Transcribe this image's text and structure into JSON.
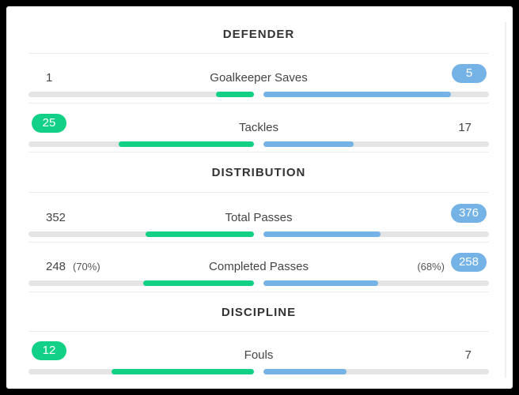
{
  "sections": [
    {
      "title": "DEFENDER"
    },
    {
      "title": "DISTRIBUTION"
    },
    {
      "title": "DISCIPLINE"
    }
  ],
  "stats": [
    {
      "label": "Goalkeeper Saves",
      "home": "1",
      "away": "5",
      "home_pct": "",
      "away_pct": "",
      "home_fill": 0.17,
      "away_fill": 0.83,
      "highlight": "away"
    },
    {
      "label": "Tackles",
      "home": "25",
      "away": "17",
      "home_pct": "",
      "away_pct": "",
      "home_fill": 0.6,
      "away_fill": 0.4,
      "highlight": "home"
    },
    {
      "label": "Total Passes",
      "home": "352",
      "away": "376",
      "home_pct": "",
      "away_pct": "",
      "home_fill": 0.48,
      "away_fill": 0.52,
      "highlight": "away"
    },
    {
      "label": "Completed Passes",
      "home": "248",
      "away": "258",
      "home_pct": "(70%)",
      "away_pct": "(68%)",
      "home_fill": 0.49,
      "away_fill": 0.51,
      "highlight": "away"
    },
    {
      "label": "Fouls",
      "home": "12",
      "away": "7",
      "home_pct": "",
      "away_pct": "",
      "home_fill": 0.63,
      "away_fill": 0.37,
      "highlight": "home"
    }
  ],
  "colors": {
    "home": "#12d186",
    "away": "#75b3e6",
    "track": "#e4e4e4"
  }
}
